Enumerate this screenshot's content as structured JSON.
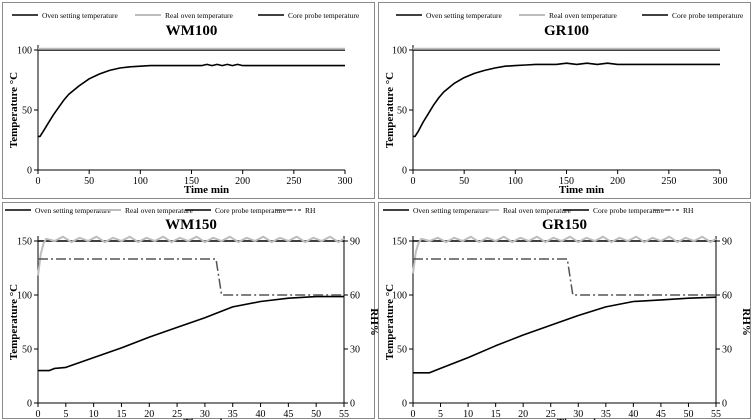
{
  "colors": {
    "oven_setting": "#000000",
    "real_oven": "#bdbdbd",
    "core_probe": "#000000",
    "rh": "#555555"
  },
  "chart_data": [
    {
      "type": "line",
      "title": "WM100",
      "xlabel": "Time  min",
      "ylabel": "Temperature  °C",
      "xlim": [
        0,
        300
      ],
      "ylim": [
        0,
        100
      ],
      "xticks": [
        "0",
        "50",
        "100",
        "150",
        "200",
        "250",
        "300"
      ],
      "yticks": [
        "0",
        "50",
        "100"
      ],
      "legend": [
        "Oven setting temperature",
        "Real oven temperature",
        "Core probe temperature"
      ],
      "legend_position": "top",
      "series": [
        {
          "name": "Oven setting temperature",
          "style": "solid",
          "x": [
            0,
            300
          ],
          "y": [
            100,
            100
          ]
        },
        {
          "name": "Real oven temperature",
          "style": "gray",
          "x": [
            0,
            300
          ],
          "y": [
            101,
            101
          ]
        },
        {
          "name": "Core probe temperature",
          "style": "solid",
          "x": [
            0,
            2,
            5,
            10,
            15,
            20,
            25,
            30,
            40,
            50,
            60,
            70,
            80,
            90,
            100,
            110,
            120,
            160,
            165,
            170,
            175,
            180,
            185,
            190,
            195,
            200,
            205,
            250,
            300
          ],
          "y": [
            28,
            28,
            32,
            39,
            46,
            52,
            58,
            63,
            70,
            76,
            80,
            83,
            85,
            86,
            86.5,
            87,
            87,
            87,
            88,
            87,
            88,
            87,
            88,
            87,
            88,
            87,
            87,
            87,
            87
          ]
        }
      ]
    },
    {
      "type": "line",
      "title": "GR100",
      "xlabel": "Time  min",
      "ylabel": "Temperature  °C",
      "xlim": [
        0,
        300
      ],
      "ylim": [
        0,
        100
      ],
      "xticks": [
        "0",
        "50",
        "100",
        "150",
        "200",
        "250",
        "300"
      ],
      "yticks": [
        "0",
        "50",
        "100"
      ],
      "legend": [
        "Oven setting temperature",
        "Real oven temperature",
        "Core probe temperature"
      ],
      "legend_position": "top",
      "series": [
        {
          "name": "Oven setting temperature",
          "style": "solid",
          "x": [
            0,
            300
          ],
          "y": [
            100,
            100
          ]
        },
        {
          "name": "Real oven temperature",
          "style": "gray",
          "x": [
            0,
            300
          ],
          "y": [
            101,
            101
          ]
        },
        {
          "name": "Core probe temperature",
          "style": "solid",
          "x": [
            0,
            2,
            5,
            10,
            15,
            20,
            25,
            30,
            40,
            50,
            60,
            70,
            80,
            90,
            100,
            110,
            120,
            140,
            150,
            160,
            170,
            180,
            190,
            200,
            205,
            250,
            300
          ],
          "y": [
            28,
            28,
            32,
            40,
            47,
            54,
            60,
            65,
            72,
            77,
            80.5,
            83,
            85,
            86.5,
            87,
            87.5,
            88,
            88,
            89,
            88,
            89,
            88,
            89,
            88,
            88,
            88,
            88
          ]
        }
      ]
    },
    {
      "type": "line",
      "title": "WM150",
      "xlabel": "Time  min",
      "ylabel": "Temperature  °C",
      "ylabel_right": "RH%",
      "xlim": [
        0,
        55
      ],
      "ylim": [
        0,
        150
      ],
      "ylim_right": [
        0,
        90
      ],
      "xticks": [
        "0",
        "5",
        "10",
        "15",
        "20",
        "25",
        "30",
        "35",
        "40",
        "45",
        "50",
        "55"
      ],
      "yticks": [
        "0",
        "50",
        "100",
        "150"
      ],
      "yticks_right": [
        "0",
        "30",
        "60",
        "90"
      ],
      "legend": [
        "Oven setting temperature",
        "Real oven temperature",
        "Core probe temperature",
        "RH"
      ],
      "legend_position": "top",
      "series": [
        {
          "name": "Oven setting temperature",
          "style": "solid",
          "axis": "left",
          "x": [
            0,
            55
          ],
          "y": [
            150,
            150
          ]
        },
        {
          "name": "Real oven temperature",
          "style": "gray",
          "axis": "left",
          "x": [
            0,
            0.5,
            1,
            1.5,
            3,
            4.5,
            6,
            7.5,
            9,
            10.5,
            12,
            13.5,
            15,
            16.5,
            18,
            19.5,
            21,
            22.5,
            24,
            25.5,
            27,
            28.5,
            30,
            31.5,
            33,
            34.5,
            36,
            37.5,
            39,
            40.5,
            42,
            43.5,
            45,
            46.5,
            48,
            49.5,
            51,
            52.5,
            54,
            55
          ],
          "y": [
            118,
            138,
            148,
            152,
            150,
            154,
            149,
            153,
            150,
            154,
            149,
            153,
            150,
            154,
            149,
            153,
            150,
            154,
            149,
            153,
            150,
            154,
            149,
            153,
            150,
            154,
            149,
            153,
            150,
            154,
            149,
            153,
            150,
            154,
            149,
            153,
            150,
            154,
            149,
            152
          ]
        },
        {
          "name": "Core probe temperature",
          "style": "solid",
          "axis": "left",
          "x": [
            0,
            2,
            3,
            5,
            10,
            15,
            20,
            25,
            30,
            32,
            35,
            40,
            45,
            50,
            55
          ],
          "y": [
            30,
            30,
            32,
            33,
            42,
            51,
            61,
            70,
            79,
            83,
            89,
            94,
            97,
            98.5,
            98.5
          ]
        },
        {
          "name": "RH",
          "style": "dashdot",
          "axis": "right",
          "x": [
            0,
            32,
            33,
            55
          ],
          "y": [
            80,
            80,
            60,
            60
          ]
        }
      ]
    },
    {
      "type": "line",
      "title": "GR150",
      "xlabel": "Time  min",
      "ylabel": "Temperature  °C",
      "ylabel_right": "RH%",
      "xlim": [
        0,
        55
      ],
      "ylim": [
        0,
        150
      ],
      "ylim_right": [
        0,
        90
      ],
      "xticks": [
        "0",
        "5",
        "10",
        "15",
        "20",
        "25",
        "30",
        "35",
        "40",
        "45",
        "50",
        "55"
      ],
      "yticks": [
        "0",
        "50",
        "100",
        "150"
      ],
      "yticks_right": [
        "0",
        "30",
        "60",
        "90"
      ],
      "legend": [
        "Oven setting temperature",
        "Real oven temperature",
        "Core probe temperature",
        "RH"
      ],
      "legend_position": "top",
      "series": [
        {
          "name": "Oven setting temperature",
          "style": "solid",
          "axis": "left",
          "x": [
            0,
            55
          ],
          "y": [
            150,
            150
          ]
        },
        {
          "name": "Real oven temperature",
          "style": "gray",
          "axis": "left",
          "x": [
            0,
            0.5,
            1,
            1.5,
            3,
            4.5,
            6,
            7.5,
            9,
            10.5,
            12,
            13.5,
            15,
            16.5,
            18,
            19.5,
            21,
            22.5,
            24,
            25.5,
            27,
            28.5,
            30,
            31.5,
            33,
            34.5,
            36,
            37.5,
            39,
            40.5,
            42,
            43.5,
            45,
            46.5,
            48,
            49.5,
            51,
            52.5,
            54,
            55
          ],
          "y": [
            120,
            140,
            148,
            152,
            150,
            153,
            149,
            153,
            150,
            154,
            149,
            153,
            150,
            154,
            149,
            153,
            150,
            154,
            149,
            153,
            150,
            154,
            149,
            153,
            150,
            154,
            149,
            153,
            150,
            154,
            149,
            153,
            150,
            154,
            149,
            153,
            150,
            154,
            149,
            152
          ]
        },
        {
          "name": "Core probe temperature",
          "style": "solid",
          "axis": "left",
          "x": [
            0,
            3,
            5,
            10,
            15,
            20,
            25,
            30,
            35,
            40,
            45,
            50,
            55
          ],
          "y": [
            28,
            28,
            32,
            42,
            53,
            63,
            72,
            81,
            89,
            94,
            95.5,
            97,
            98
          ]
        },
        {
          "name": "RH",
          "style": "dashdot",
          "axis": "right",
          "x": [
            0,
            28,
            29,
            55
          ],
          "y": [
            80,
            80,
            60,
            60
          ]
        }
      ]
    }
  ]
}
